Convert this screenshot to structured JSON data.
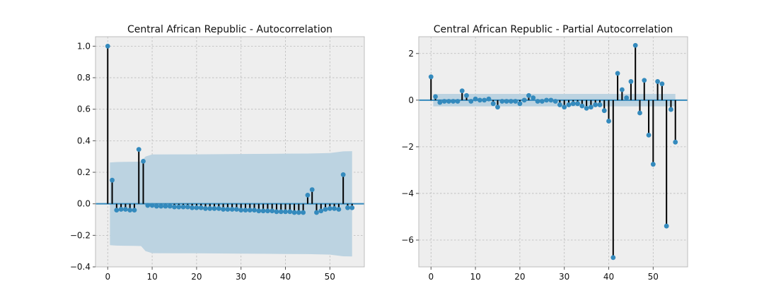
{
  "colors": {
    "plot_bg": "#EEEEEE",
    "band": "#BCD3E1",
    "marker": "#348ABD",
    "stem": "#000000",
    "baseline": "#348ABD",
    "grid": "#B9B9B9"
  },
  "chart_data": [
    {
      "type": "stem",
      "title": "Central African Republic - Autocorrelation",
      "xlim": [
        -2.75,
        57.75
      ],
      "ylim": [
        -0.4,
        1.06
      ],
      "xticks": [
        0,
        10,
        20,
        30,
        40,
        50
      ],
      "xtick_labels": [
        "0",
        "10",
        "20",
        "30",
        "40",
        "50"
      ],
      "yticks": [
        -0.4,
        -0.2,
        0.0,
        0.2,
        0.4,
        0.6,
        0.8,
        1.0
      ],
      "ytick_labels": [
        "−0.4",
        "−0.2",
        "0.0",
        "0.2",
        "0.4",
        "0.6",
        "0.8",
        "1.0"
      ],
      "grid": true,
      "x": [
        0,
        1,
        2,
        3,
        4,
        5,
        6,
        7,
        8,
        9,
        10,
        11,
        12,
        13,
        14,
        15,
        16,
        17,
        18,
        19,
        20,
        21,
        22,
        23,
        24,
        25,
        26,
        27,
        28,
        29,
        30,
        31,
        32,
        33,
        34,
        35,
        36,
        37,
        38,
        39,
        40,
        41,
        42,
        43,
        44,
        45,
        46,
        47,
        48,
        49,
        50,
        51,
        52,
        53,
        54,
        55
      ],
      "values": [
        1.0,
        0.15,
        -0.04,
        -0.035,
        -0.035,
        -0.04,
        -0.04,
        0.345,
        0.27,
        -0.01,
        -0.01,
        -0.015,
        -0.015,
        -0.015,
        -0.015,
        -0.02,
        -0.02,
        -0.02,
        -0.02,
        -0.025,
        -0.025,
        -0.025,
        -0.03,
        -0.03,
        -0.03,
        -0.03,
        -0.035,
        -0.035,
        -0.035,
        -0.035,
        -0.04,
        -0.04,
        -0.04,
        -0.04,
        -0.045,
        -0.045,
        -0.045,
        -0.045,
        -0.05,
        -0.05,
        -0.05,
        -0.05,
        -0.055,
        -0.055,
        -0.055,
        0.055,
        0.09,
        -0.055,
        -0.045,
        -0.035,
        -0.03,
        -0.03,
        -0.035,
        0.185,
        -0.025,
        -0.025
      ],
      "confidence_band": {
        "x": [
          0.5,
          2,
          4,
          6,
          7.5,
          8.5,
          10,
          20,
          30,
          40,
          45,
          50,
          53,
          55
        ],
        "upper": [
          0.262,
          0.265,
          0.266,
          0.267,
          0.268,
          0.3,
          0.313,
          0.314,
          0.316,
          0.318,
          0.319,
          0.322,
          0.333,
          0.334
        ],
        "lower": [
          -0.262,
          -0.265,
          -0.266,
          -0.267,
          -0.268,
          -0.3,
          -0.313,
          -0.314,
          -0.316,
          -0.318,
          -0.319,
          -0.322,
          -0.333,
          -0.334
        ]
      }
    },
    {
      "type": "stem",
      "title": "Central African Republic - Partial Autocorrelation",
      "xlim": [
        -2.75,
        57.75
      ],
      "ylim": [
        -7.15,
        2.72
      ],
      "xticks": [
        0,
        10,
        20,
        30,
        40,
        50
      ],
      "xtick_labels": [
        "0",
        "10",
        "20",
        "30",
        "40",
        "50"
      ],
      "yticks": [
        -6,
        -4,
        -2,
        0,
        2
      ],
      "ytick_labels": [
        "−6",
        "−4",
        "−2",
        "0",
        "2"
      ],
      "grid": true,
      "x": [
        0,
        1,
        2,
        3,
        4,
        5,
        6,
        7,
        8,
        9,
        10,
        11,
        12,
        13,
        14,
        15,
        16,
        17,
        18,
        19,
        20,
        21,
        22,
        23,
        24,
        25,
        26,
        27,
        28,
        29,
        30,
        31,
        32,
        33,
        34,
        35,
        36,
        37,
        38,
        39,
        40,
        41,
        42,
        43,
        44,
        45,
        46,
        47,
        48,
        49,
        50,
        51,
        52,
        53,
        54,
        55
      ],
      "values": [
        1.0,
        0.15,
        -0.1,
        -0.05,
        -0.05,
        -0.05,
        -0.05,
        0.4,
        0.2,
        -0.05,
        0.05,
        0.0,
        0.0,
        0.05,
        -0.15,
        -0.3,
        -0.05,
        -0.05,
        -0.05,
        -0.05,
        -0.15,
        0.0,
        0.2,
        0.1,
        -0.05,
        -0.05,
        0.0,
        0.0,
        -0.05,
        -0.2,
        -0.3,
        -0.2,
        -0.15,
        -0.15,
        -0.25,
        -0.35,
        -0.3,
        -0.2,
        -0.2,
        -0.45,
        -0.9,
        -6.75,
        1.15,
        0.45,
        0.1,
        0.8,
        2.35,
        -0.55,
        0.85,
        -1.5,
        -2.75,
        0.8,
        0.7,
        -5.4,
        -0.4,
        -1.8
      ],
      "confidence_band": {
        "x": [
          0.5,
          55
        ],
        "upper": [
          0.267,
          0.267
        ],
        "lower": [
          -0.267,
          -0.267
        ]
      }
    }
  ]
}
